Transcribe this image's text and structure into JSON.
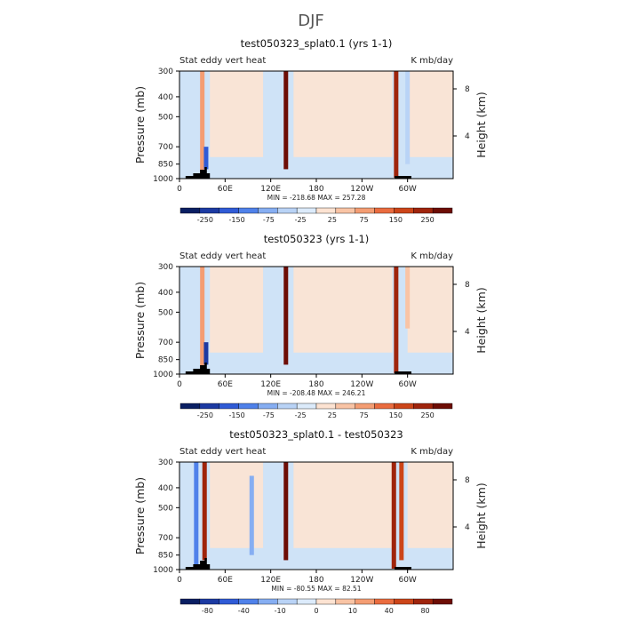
{
  "figure_title": "DJF",
  "colors": {
    "divergent": [
      "#0a1f63",
      "#1c3aa2",
      "#2f5bd6",
      "#4f81ea",
      "#86aef2",
      "#b9d3f6",
      "#dcebfb",
      "#fde3d2",
      "#f9c4a5",
      "#f49d73",
      "#ea6c3f",
      "#cc4519",
      "#9f240c",
      "#6d0d05"
    ],
    "background_field": "#cfe3f7",
    "warm_field": "#fde3d2",
    "topo": "#000000"
  },
  "chart_data": [
    {
      "type": "heatmap",
      "title": "test050323_splat0.1 (yrs 1-1)",
      "left_label": "Stat eddy vert heat",
      "units": "K mb/day",
      "ylabel": "Pressure (mb)",
      "ylabel_right": "Height (km)",
      "y_ticks": [
        300,
        400,
        500,
        700,
        850,
        1000
      ],
      "y_right_ticks": [
        8,
        4
      ],
      "x_ticks": [
        "0",
        "60E",
        "120E",
        "180",
        "120W",
        "60W"
      ],
      "xlim_lon": [
        0,
        360
      ],
      "ylim_mb": [
        1000,
        300
      ],
      "stats_text": "MIN = -218.68   MAX = 257.28",
      "colorbar_labels": [
        "-250",
        "-150",
        "-75",
        "-25",
        "25",
        "75",
        "150",
        "250"
      ],
      "features": [
        {
          "lon": 30,
          "p_top": 300,
          "p_bot": 980,
          "v": 60
        },
        {
          "lon": 35,
          "p_top": 700,
          "p_bot": 900,
          "v": -150
        },
        {
          "lon": 140,
          "p_top": 300,
          "p_bot": 900,
          "v": 200
        },
        {
          "lon": 285,
          "p_top": 300,
          "p_bot": 990,
          "v": 170
        },
        {
          "lon": 300,
          "p_top": 300,
          "p_bot": 850,
          "v": -40
        }
      ]
    },
    {
      "type": "heatmap",
      "title": "test050323 (yrs 1-1)",
      "left_label": "Stat eddy vert heat",
      "units": "K mb/day",
      "ylabel": "Pressure (mb)",
      "ylabel_right": "Height (km)",
      "y_ticks": [
        300,
        400,
        500,
        700,
        850,
        1000
      ],
      "y_right_ticks": [
        8,
        4
      ],
      "x_ticks": [
        "0",
        "60E",
        "120E",
        "180",
        "120W",
        "60W"
      ],
      "xlim_lon": [
        0,
        360
      ],
      "ylim_mb": [
        1000,
        300
      ],
      "stats_text": "MIN = -208.48   MAX = 246.21",
      "colorbar_labels": [
        "-250",
        "-150",
        "-75",
        "-25",
        "25",
        "75",
        "150",
        "250"
      ],
      "features": [
        {
          "lon": 30,
          "p_top": 300,
          "p_bot": 980,
          "v": 60
        },
        {
          "lon": 35,
          "p_top": 700,
          "p_bot": 900,
          "v": -150
        },
        {
          "lon": 140,
          "p_top": 300,
          "p_bot": 900,
          "v": 180
        },
        {
          "lon": 285,
          "p_top": 300,
          "p_bot": 990,
          "v": 150
        },
        {
          "lon": 300,
          "p_top": 300,
          "p_bot": 600,
          "v": 30
        }
      ]
    },
    {
      "type": "heatmap",
      "title": "test050323_splat0.1 - test050323",
      "left_label": "Stat eddy vert heat",
      "units": "K mb/day",
      "ylabel": "Pressure (mb)",
      "ylabel_right": "Height (km)",
      "y_ticks": [
        300,
        400,
        500,
        700,
        850,
        1000
      ],
      "y_right_ticks": [
        8,
        4
      ],
      "x_ticks": [
        "0",
        "60E",
        "120E",
        "180",
        "120W",
        "60W"
      ],
      "xlim_lon": [
        0,
        360
      ],
      "ylim_mb": [
        1000,
        300
      ],
      "stats_text": "MIN = -80.55   MAX = 82.51",
      "colorbar_labels": [
        "-80",
        "-40",
        "-10",
        "0",
        "10",
        "40",
        "80"
      ],
      "features": [
        {
          "lon": 22,
          "p_top": 300,
          "p_bot": 950,
          "v": -30
        },
        {
          "lon": 33,
          "p_top": 300,
          "p_bot": 900,
          "v": 45
        },
        {
          "lon": 95,
          "p_top": 350,
          "p_bot": 850,
          "v": -25
        },
        {
          "lon": 140,
          "p_top": 300,
          "p_bot": 900,
          "v": 60
        },
        {
          "lon": 282,
          "p_top": 300,
          "p_bot": 990,
          "v": 50
        },
        {
          "lon": 292,
          "p_top": 300,
          "p_bot": 900,
          "v": 40
        }
      ]
    }
  ]
}
